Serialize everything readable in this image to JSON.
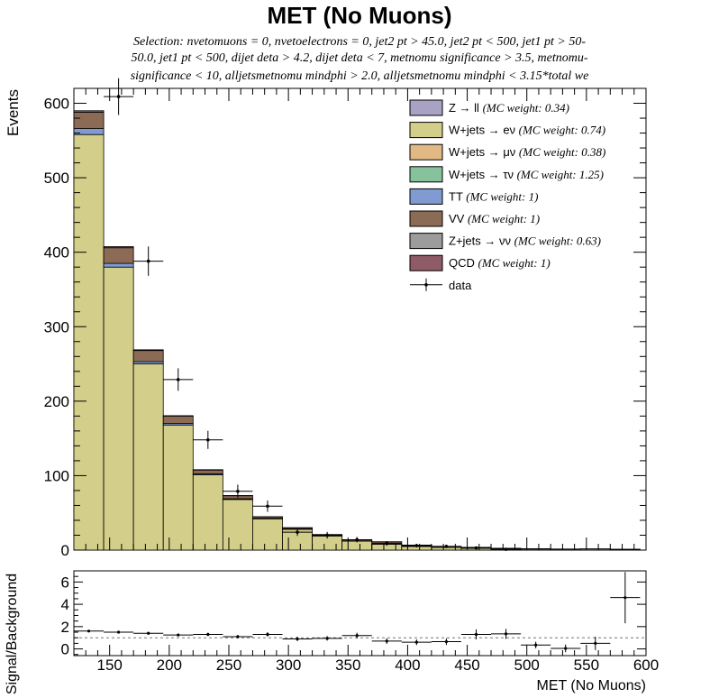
{
  "title": "MET (No Muons)",
  "subtitle": [
    "Selection: nvetomuons = 0, nvetoelectrons = 0, jet2 pt > 45.0, jet2 pt < 500, jet1 pt > 50-",
    "50.0, jet1 pt < 500, dijet deta > 4.2, dijet deta < 7, metnomu significance > 3.5, metnomu-",
    "significance < 10, alljetsmetnomu mindphi > 2.0, alljetsmetnomu mindphi < 3.15*total we"
  ],
  "legend": [
    {
      "label": "Z → ll",
      "weight": "(MC weight: 0.34)",
      "color": "#a9a2c2"
    },
    {
      "label": "W+jets → eν",
      "weight": "(MC weight: 0.74)",
      "color": "#d3cf8a"
    },
    {
      "label": "W+jets → μν",
      "weight": "(MC weight: 0.38)",
      "color": "#e2b984"
    },
    {
      "label": "W+jets → τν",
      "weight": "(MC weight: 1.25)",
      "color": "#86c39c"
    },
    {
      "label": "TT",
      "weight": "(MC weight: 1)",
      "color": "#7f9bd1"
    },
    {
      "label": "VV",
      "weight": "(MC weight: 1)",
      "color": "#8b6a56"
    },
    {
      "label": "Z+jets → νν",
      "weight": "(MC weight: 0.63)",
      "color": "#9c9c9c"
    },
    {
      "label": "QCD",
      "weight": "(MC weight: 1)",
      "color": "#8f5b66"
    },
    {
      "label": "data",
      "weight": "",
      "color": "#000000"
    }
  ],
  "chart_data": [
    {
      "type": "bar",
      "subtype": "stacked-histogram-with-data-points",
      "xlabel": "",
      "ylabel": "Events",
      "xlim": [
        120,
        600
      ],
      "ylim": [
        0,
        620
      ],
      "bin_edges": [
        120,
        145,
        170,
        195,
        220,
        245,
        270,
        295,
        320,
        345,
        370,
        395,
        420,
        445,
        470,
        495,
        520,
        545,
        570,
        595
      ],
      "yticks": [
        0,
        100,
        200,
        300,
        400,
        500,
        600
      ],
      "series": [
        {
          "name": "W+jets → eν",
          "values": [
            558,
            380,
            250,
            168,
            101,
            68,
            42,
            28,
            19,
            12,
            8,
            5,
            3.5,
            2.5,
            1.8,
            1.4,
            1.2,
            1.5,
            1.0
          ]
        },
        {
          "name": "TT",
          "values": [
            8,
            5,
            3,
            2,
            1.5,
            1,
            0.7,
            0.5,
            0.3,
            0.2,
            0.1,
            0.1,
            0.05,
            0.05,
            0,
            0,
            0,
            0,
            0
          ]
        },
        {
          "name": "VV",
          "values": [
            22,
            21,
            15,
            10,
            5,
            4,
            2,
            1.5,
            1.5,
            1.5,
            3,
            1.5,
            1.5,
            1.2,
            0.7,
            0.5,
            0.3,
            0.2,
            0.2
          ]
        },
        {
          "name": "QCD",
          "values": [
            2,
            1.5,
            1,
            0.5,
            0.5,
            0.3,
            0.2,
            0.1,
            0.1,
            0.1,
            0.1,
            0.1,
            0,
            0,
            0,
            0,
            0,
            0,
            0
          ]
        }
      ],
      "data_points": {
        "name": "data",
        "x": [
          157.5,
          182.5,
          207.5,
          232.5,
          257.5,
          282.5,
          307.5,
          332.5,
          357.5,
          382.5,
          407.5,
          432.5,
          457.5,
          482.5
        ],
        "y": [
          609,
          388,
          229,
          148,
          79,
          59,
          24,
          20,
          14,
          9,
          6,
          5,
          3,
          1
        ]
      }
    },
    {
      "type": "scatter",
      "subtype": "ratio-panel",
      "xlabel": "MET (No Muons)",
      "ylabel": "Signal/Background",
      "xlim": [
        120,
        600
      ],
      "ylim": [
        -0.6,
        7
      ],
      "xticks": [
        150,
        200,
        250,
        300,
        350,
        400,
        450,
        500,
        550,
        600
      ],
      "yticks": [
        0,
        2,
        4,
        6
      ],
      "reference_line": 1,
      "x": [
        132.5,
        157.5,
        182.5,
        207.5,
        232.5,
        257.5,
        282.5,
        307.5,
        332.5,
        357.5,
        382.5,
        407.5,
        432.5,
        457.5,
        482.5,
        507.5,
        532.5,
        557.5,
        582.5
      ],
      "y": [
        1.6,
        1.5,
        1.4,
        1.25,
        1.3,
        1.1,
        1.3,
        0.9,
        0.95,
        1.2,
        0.7,
        0.6,
        0.65,
        1.3,
        1.35,
        0.35,
        0.05,
        0.5,
        4.6
      ],
      "yerr": [
        0.1,
        0.1,
        0.12,
        0.12,
        0.15,
        0.15,
        0.2,
        0.2,
        0.2,
        0.25,
        0.25,
        0.25,
        0.3,
        0.45,
        0.45,
        0.3,
        0.35,
        0.6,
        2.3
      ]
    }
  ]
}
